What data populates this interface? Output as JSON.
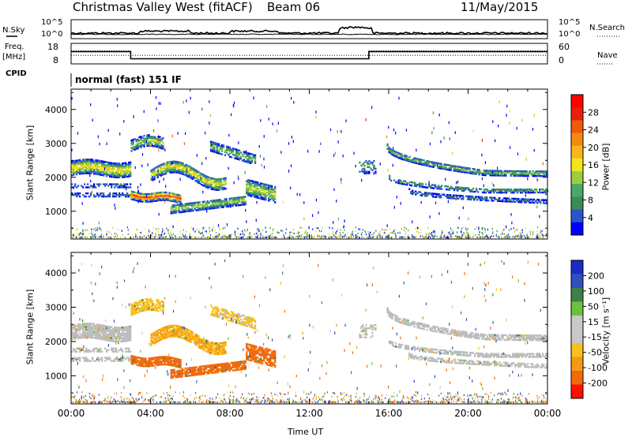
{
  "header": {
    "station": "Christmas Valley West (fitACF)",
    "beam": "Beam 06",
    "date": "11/May/2015"
  },
  "left_labels": {
    "nsky": "N.Sky",
    "freq": "Freq.",
    "freq_unit": "[MHz]",
    "cpid": "CPID",
    "cpid_value": "normal (fast) 151 IF"
  },
  "right_labels": {
    "nsearch": "N.Search",
    "nave": "Nave"
  },
  "strip_ticks": {
    "noise_left": [
      "10^5",
      "10^0"
    ],
    "noise_right": [
      "10^5",
      "10^0"
    ],
    "freq_left": [
      "18",
      "8"
    ],
    "nave_right": [
      "60",
      "0"
    ]
  },
  "colors": {
    "power_scale": [
      "#0000ff",
      "#2a55c8",
      "#3c8a5a",
      "#4aa96a",
      "#9ccc44",
      "#f4e41c",
      "#f8b81a",
      "#f58a12",
      "#f05a0a",
      "#e8200a",
      "#ff0000"
    ],
    "velocity_scale": [
      "#1a2bc8",
      "#3050c0",
      "#3a8a4a",
      "#66c040",
      "#c8c8c8",
      "#c8c8c8",
      "#f7c020",
      "#f59a15",
      "#f0700e",
      "#e8400a",
      "#ff0000"
    ],
    "velocity_ground": "#bdbdbd"
  },
  "chart_data": [
    {
      "type": "heatmap",
      "name": "noise-strip",
      "ylabel_left": "N.Sky",
      "ylabel_right": "N.Search",
      "yticks": [
        "10^5",
        "10^0"
      ]
    },
    {
      "type": "heatmap",
      "name": "power",
      "xlabel": "",
      "ylabel": "Slant Range [km]",
      "ylim": [
        180,
        4600
      ],
      "yticks": [
        "1000",
        "2000",
        "3000",
        "4000"
      ],
      "colorbar_label": "Power [dB]",
      "colorbar_ticks": [
        "28",
        "24",
        "20",
        "16",
        "12",
        "8",
        "4"
      ],
      "colorbar_range": [
        0,
        32
      ]
    },
    {
      "type": "heatmap",
      "name": "velocity",
      "xlabel": "Time UT",
      "ylabel": "Slant Range [km]",
      "ylim": [
        180,
        4600
      ],
      "xlim": [
        "00:00",
        "24:00"
      ],
      "xticks": [
        "00:00",
        "04:00",
        "08:00",
        "12:00",
        "16:00",
        "20:00",
        "00:00"
      ],
      "yticks": [
        "1000",
        "2000",
        "3000",
        "4000"
      ],
      "colorbar_label": "Velocity [m s^-1]",
      "colorbar_ticks": [
        "200",
        "100",
        "50",
        "15",
        "-15",
        "-50",
        "-100",
        "-200"
      ]
    }
  ],
  "freq_series": {
    "x_hours": [
      0,
      3.0,
      3.0,
      15.0,
      15.0,
      24
    ],
    "mhz": [
      14,
      14,
      10.5,
      10.5,
      14,
      14
    ]
  },
  "nave_series": {
    "x_hours": [
      0,
      24
    ],
    "nave": [
      25,
      25
    ]
  },
  "axes_titles": {
    "power_ylabel": "Slant Range [km]",
    "velocity_ylabel": "Slant Range [km]",
    "power_cb": "Power [dB]",
    "velocity_cb": "Velocity [m s⁻¹]",
    "time": "Time UT"
  }
}
